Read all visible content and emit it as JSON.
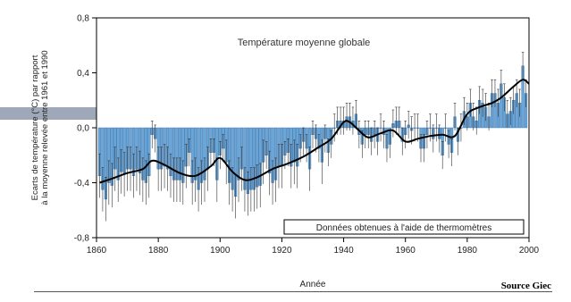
{
  "figure": {
    "source": "Source Giec",
    "colors": {
      "bar_fill": "#6aa6d8",
      "bar_edge": "#2f6aa6",
      "error_bar": "#333333",
      "smooth_line": "#000000",
      "axis": "#000000",
      "left_tab": "#9ea8b8"
    }
  },
  "chart_data": {
    "type": "bar",
    "title": "Température moyenne globale",
    "annotation": "Données obtenues à l'aide de thermomètres",
    "xlabel": "Année",
    "ylabel_lines": [
      "Ecarts de température (°C) par rapport",
      "à la moyenne relevée entre 1961 et 1990"
    ],
    "xlim": [
      1860,
      2000
    ],
    "ylim": [
      -0.8,
      0.8
    ],
    "x_ticks": [
      1860,
      1880,
      1900,
      1920,
      1940,
      1960,
      1980,
      2000
    ],
    "x_tick_labels": [
      "1860",
      "1880",
      "1900",
      "1920",
      "1940",
      "1960",
      "1980",
      "2000"
    ],
    "y_ticks": [
      -0.8,
      -0.4,
      0.0,
      0.4,
      0.8
    ],
    "y_tick_labels": [
      "-0,8",
      "-0,4",
      "0,0",
      "0,4",
      "0,8"
    ],
    "legend": "none",
    "grid": false,
    "start_year": 1861,
    "values": [
      -0.35,
      -0.45,
      -0.52,
      -0.4,
      -0.42,
      -0.3,
      -0.38,
      -0.32,
      -0.34,
      -0.3,
      -0.3,
      -0.35,
      -0.3,
      -0.33,
      -0.38,
      -0.4,
      -0.35,
      -0.05,
      -0.08,
      -0.3,
      -0.3,
      -0.28,
      -0.3,
      -0.35,
      -0.38,
      -0.38,
      -0.38,
      -0.4,
      -0.28,
      -0.18,
      -0.4,
      -0.38,
      -0.45,
      -0.4,
      -0.38,
      -0.3,
      -0.18,
      -0.18,
      -0.38,
      -0.2,
      -0.15,
      -0.25,
      -0.4,
      -0.45,
      -0.5,
      -0.38,
      -0.3,
      -0.45,
      -0.48,
      -0.45,
      -0.45,
      -0.43,
      -0.42,
      -0.25,
      -0.2,
      -0.33,
      -0.4,
      -0.38,
      -0.28,
      -0.28,
      -0.2,
      -0.18,
      -0.28,
      -0.25,
      -0.28,
      -0.15,
      -0.1,
      -0.15,
      -0.3,
      -0.05,
      -0.08,
      -0.15,
      -0.25,
      -0.08,
      -0.18,
      -0.12,
      0.0,
      0.05,
      0.05,
      0.05,
      0.08,
      0.08,
      0.05,
      0.1,
      -0.05,
      -0.12,
      -0.05,
      -0.05,
      -0.1,
      -0.05,
      -0.1,
      0.0,
      -0.05,
      -0.15,
      -0.12,
      0.03,
      0.05,
      0.05,
      -0.1,
      -0.05,
      0.02,
      -0.02,
      0.0,
      0.0,
      -0.15,
      -0.15,
      -0.05,
      0.0,
      -0.08,
      0.0,
      -0.08,
      -0.2,
      0.0,
      -0.12,
      -0.18,
      0.08,
      -0.1,
      0.0,
      0.12,
      0.08,
      0.18,
      0.08,
      0.05,
      0.2,
      0.18,
      0.15,
      0.08,
      0.25,
      0.25,
      0.18,
      0.32,
      0.22,
      0.1,
      0.12,
      0.2,
      0.25,
      0.18,
      0.45,
      0.25
    ],
    "smooth": [
      [
        1861,
        -0.4
      ],
      [
        1865,
        -0.37
      ],
      [
        1870,
        -0.33
      ],
      [
        1875,
        -0.3
      ],
      [
        1878,
        -0.24
      ],
      [
        1882,
        -0.27
      ],
      [
        1887,
        -0.33
      ],
      [
        1892,
        -0.35
      ],
      [
        1897,
        -0.28
      ],
      [
        1900,
        -0.22
      ],
      [
        1904,
        -0.32
      ],
      [
        1908,
        -0.38
      ],
      [
        1912,
        -0.36
      ],
      [
        1917,
        -0.3
      ],
      [
        1922,
        -0.26
      ],
      [
        1927,
        -0.21
      ],
      [
        1932,
        -0.14
      ],
      [
        1936,
        -0.08
      ],
      [
        1940,
        0.04
      ],
      [
        1942,
        0.04
      ],
      [
        1945,
        -0.02
      ],
      [
        1948,
        -0.07
      ],
      [
        1952,
        -0.04
      ],
      [
        1956,
        -0.02
      ],
      [
        1960,
        -0.1
      ],
      [
        1964,
        -0.08
      ],
      [
        1968,
        -0.06
      ],
      [
        1972,
        -0.05
      ],
      [
        1976,
        -0.06
      ],
      [
        1980,
        0.1
      ],
      [
        1984,
        0.15
      ],
      [
        1988,
        0.18
      ],
      [
        1991,
        0.22
      ],
      [
        1995,
        0.3
      ],
      [
        1998,
        0.35
      ],
      [
        2000,
        0.32
      ]
    ]
  }
}
